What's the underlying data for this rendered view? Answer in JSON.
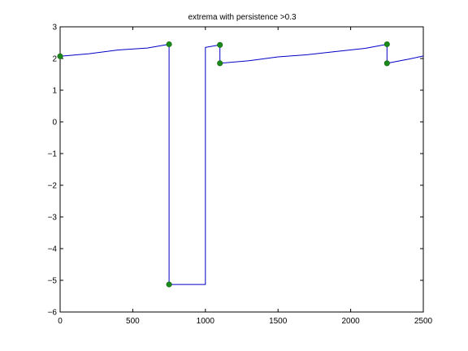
{
  "chart_data": {
    "type": "line",
    "title": "extrema with persistence >0.3",
    "xlabel": "",
    "ylabel": "",
    "xlim": [
      0,
      2500
    ],
    "ylim": [
      -6,
      3
    ],
    "xticks": [
      0,
      500,
      1000,
      1500,
      2000,
      2500
    ],
    "xtick_labels": [
      "0",
      "500",
      "1000",
      "1500",
      "2000",
      "2500"
    ],
    "yticks": [
      -6,
      -5,
      -4,
      -3,
      -2,
      -1,
      0,
      1,
      2,
      3
    ],
    "ytick_labels": [
      "−6",
      "−5",
      "−4",
      "−3",
      "−2",
      "−1",
      "0",
      "1",
      "2",
      "3"
    ],
    "grid": false,
    "colors": {
      "line": "#0000c8",
      "marker": "#1a8a1a",
      "axes": "#000000"
    },
    "series": [
      {
        "x": [
          0,
          200,
          400,
          600,
          750,
          750,
          1000,
          1000,
          1100,
          1100,
          1300,
          1500,
          1700,
          1900,
          2100,
          2250,
          2250,
          2400,
          2500
        ],
        "y": [
          2.07,
          2.15,
          2.27,
          2.33,
          2.45,
          -5.13,
          -5.13,
          2.35,
          2.43,
          1.85,
          1.93,
          2.05,
          2.12,
          2.22,
          2.32,
          2.45,
          1.85,
          1.98,
          2.08
        ]
      }
    ],
    "markers": {
      "x": [
        0,
        750,
        750,
        1100,
        1100,
        2250,
        2250
      ],
      "y": [
        2.07,
        2.45,
        -5.13,
        2.43,
        1.85,
        2.45,
        1.85
      ]
    }
  }
}
